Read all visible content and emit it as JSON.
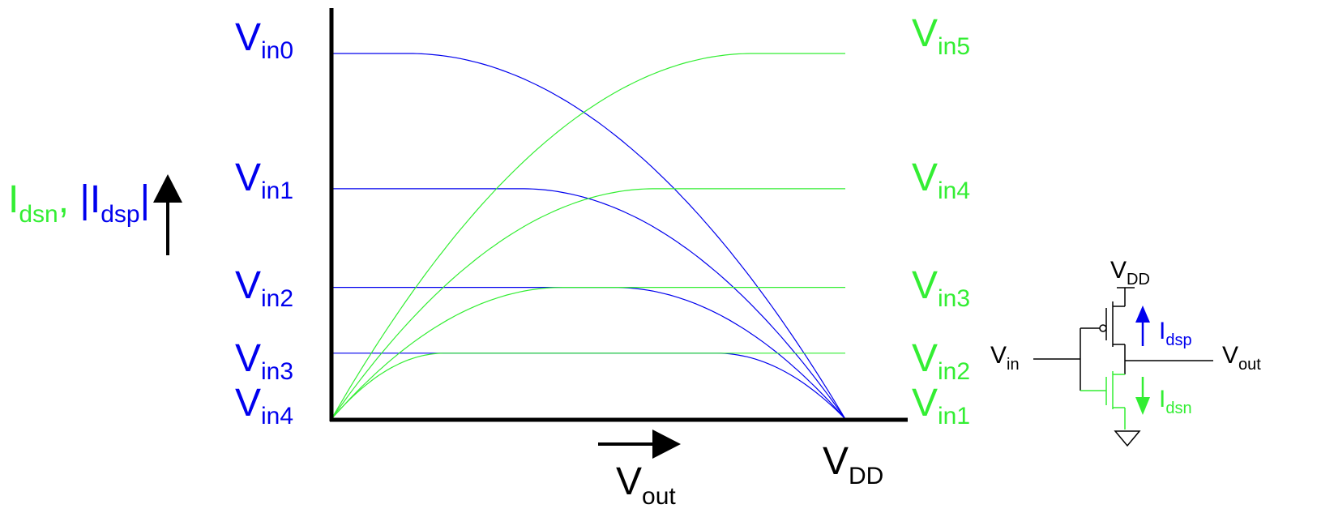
{
  "colors": {
    "pmos": "#0000ee",
    "nmos": "#33ee33",
    "axis": "#000000"
  },
  "y_label": {
    "n_base": "I",
    "n_sub": "dsn",
    "sep": ", ",
    "p_bar_l": "|",
    "p_base": "I",
    "p_sub": "dsp",
    "p_bar_r": "|"
  },
  "x_label": {
    "base": "V",
    "sub": "out"
  },
  "vdd_label": {
    "base": "V",
    "sub": "DD"
  },
  "pmos_labels": [
    {
      "base": "V",
      "sub": "in0"
    },
    {
      "base": "V",
      "sub": "in1"
    },
    {
      "base": "V",
      "sub": "in2"
    },
    {
      "base": "V",
      "sub": "in3"
    },
    {
      "base": "V",
      "sub": "in4"
    }
  ],
  "nmos_labels": [
    {
      "base": "V",
      "sub": "in5"
    },
    {
      "base": "V",
      "sub": "in4"
    },
    {
      "base": "V",
      "sub": "in3"
    },
    {
      "base": "V",
      "sub": "in2"
    },
    {
      "base": "V",
      "sub": "in1"
    }
  ],
  "circuit": {
    "vdd": {
      "base": "V",
      "sub": "DD"
    },
    "vin": {
      "base": "V",
      "sub": "in"
    },
    "vout": {
      "base": "V",
      "sub": "out"
    },
    "idsp": {
      "base": "I",
      "sub": "dsp"
    },
    "idsn": {
      "base": "I",
      "sub": "dsn"
    }
  },
  "chart_data": {
    "type": "line",
    "x_range": [
      "0",
      "V_DD"
    ],
    "pmos_curves": [
      {
        "input": "Vin0",
        "sat_current": 1.0,
        "flat_until": 0.15
      },
      {
        "input": "Vin1",
        "sat_current": 0.63,
        "flat_until": 0.37
      },
      {
        "input": "Vin2",
        "sat_current": 0.36,
        "flat_until": 0.55
      },
      {
        "input": "Vin3",
        "sat_current": 0.18,
        "flat_until": 0.75
      },
      {
        "input": "Vin4",
        "sat_current": 0.0,
        "flat_until": 1.0
      }
    ],
    "nmos_curves": [
      {
        "input": "Vin5",
        "sat_current": 1.0,
        "sat_at": 0.82
      },
      {
        "input": "Vin4",
        "sat_current": 0.63,
        "sat_at": 0.63
      },
      {
        "input": "Vin3",
        "sat_current": 0.36,
        "sat_at": 0.45
      },
      {
        "input": "Vin2",
        "sat_current": 0.18,
        "sat_at": 0.22
      },
      {
        "input": "Vin1",
        "sat_current": 0.0,
        "sat_at": 0.0
      }
    ]
  }
}
